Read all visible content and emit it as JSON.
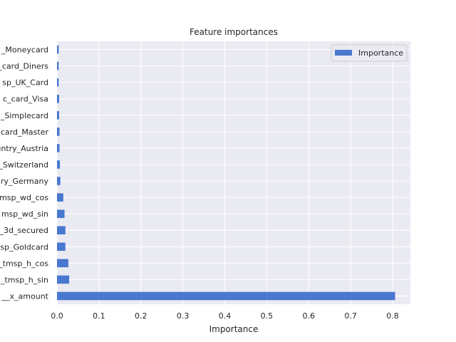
{
  "chart_data": {
    "type": "bar",
    "orientation": "horizontal",
    "title": "Feature importances",
    "xlabel": "Importance",
    "ylabel": "",
    "xlim": [
      0,
      0.8424
    ],
    "x_ticks": [
      "0.0",
      "0.1",
      "0.2",
      "0.3",
      "0.4",
      "0.5",
      "0.6",
      "0.7",
      "0.8"
    ],
    "categories": [
      "_Moneycard",
      "_card_Diners",
      "sp_UK_Card",
      "c_card_Visa",
      "_Simplecard",
      "card_Master",
      "untry_Austria",
      "_Switzerland",
      "ry_Germany",
      "tmsp_wd_cos",
      "msp_wd_sin",
      "_3d_secured",
      "sp_Goldcard",
      "_tmsp_h_cos",
      "_tmsp_h_sin",
      "__x_amount"
    ],
    "series": [
      {
        "name": "Importance",
        "values": [
          0.004,
          0.004,
          0.004,
          0.005,
          0.005,
          0.006,
          0.006,
          0.007,
          0.008,
          0.015,
          0.018,
          0.02,
          0.02,
          0.027,
          0.029,
          0.806
        ]
      }
    ],
    "legend": {
      "position": "top-right",
      "labels": [
        "Importance"
      ]
    },
    "grid": true,
    "colors": {
      "bar": "#4878cf",
      "background": "#eaeaf2",
      "grid": "#ffffff"
    }
  }
}
